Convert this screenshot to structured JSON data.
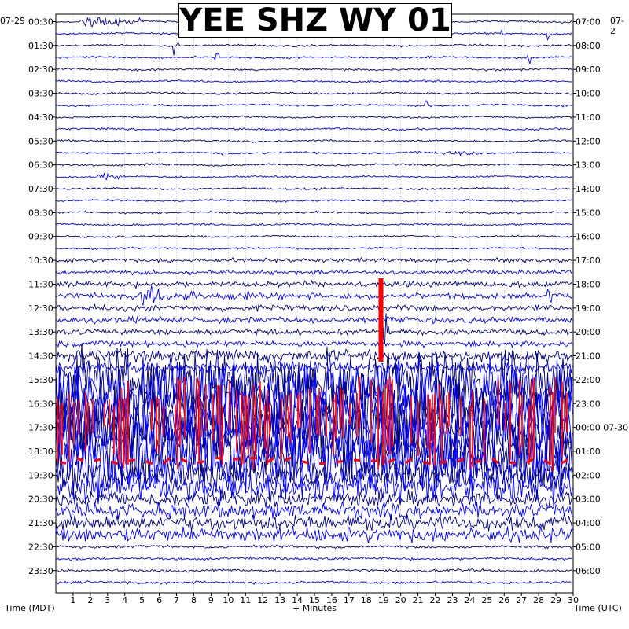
{
  "title": "YEE SHZ WY 01",
  "chart_data": {
    "type": "line",
    "title": "YEE SHZ WY 01",
    "xlabel": "+ Minutes",
    "ylabel_left": "Time (MDT)",
    "ylabel_right": "Time (UTC)",
    "x_range": [
      0,
      30
    ],
    "x_ticks": [
      "1",
      "2",
      "3",
      "4",
      "5",
      "6",
      "7",
      "8",
      "9",
      "10",
      "11",
      "12",
      "13",
      "14",
      "15",
      "16",
      "17",
      "18",
      "19",
      "20",
      "21",
      "22",
      "23",
      "24",
      "25",
      "26",
      "27",
      "28",
      "29",
      "30"
    ],
    "date_left": "07-29",
    "date_right_top": "07-2",
    "left_times": [
      "00:30",
      "01:30",
      "02:30",
      "03:30",
      "04:30",
      "05:30",
      "06:30",
      "07:30",
      "08:30",
      "09:30",
      "10:30",
      "11:30",
      "12:30",
      "13:30",
      "14:30",
      "15:30",
      "16:30",
      "17:30",
      "18:30",
      "19:30",
      "20:30",
      "21:30",
      "22:30",
      "23:30"
    ],
    "right_times": [
      "07:00",
      "08:00",
      "09:00",
      "10:00",
      "11:00",
      "12:00",
      "13:00",
      "14:00",
      "15:00",
      "16:00",
      "17:00",
      "18:00",
      "19:00",
      "20:00",
      "21:00",
      "22:00",
      "23:00",
      "00:00 07-30",
      "01:00",
      "02:00",
      "03:00",
      "04:00",
      "05:00",
      "06:00"
    ],
    "trace_colors": [
      "#000080",
      "#0000ff"
    ],
    "clip_color": "#ff0000",
    "grid": true,
    "rows_per_hour": 2
  }
}
